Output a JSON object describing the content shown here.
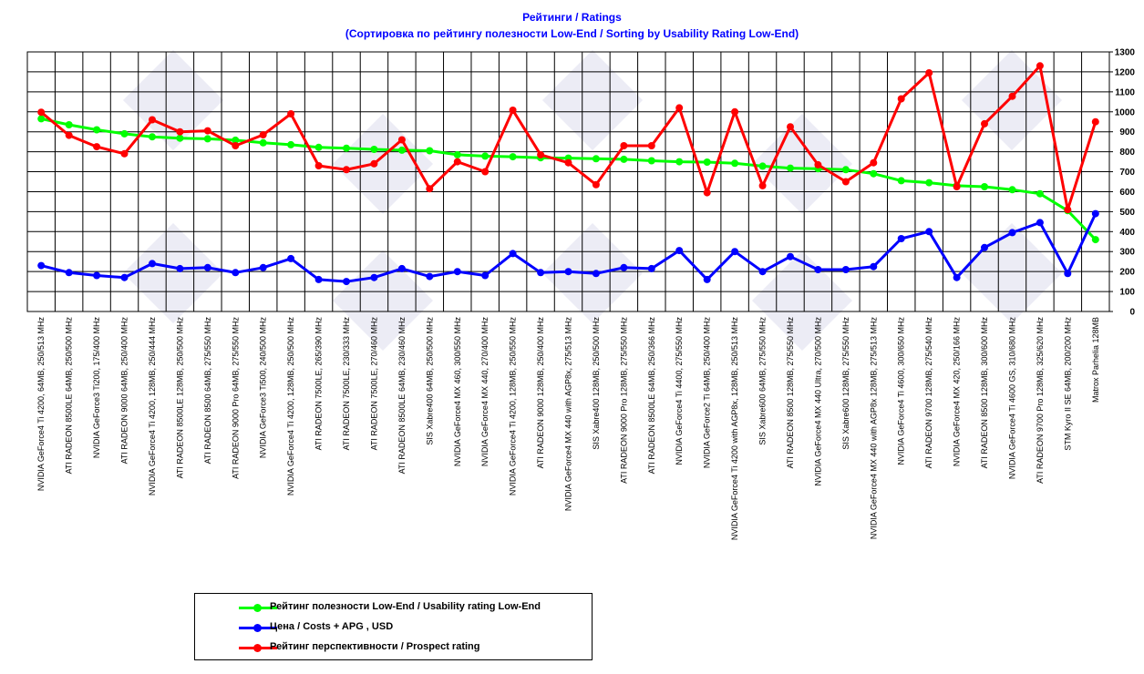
{
  "title": "Рейтинги / Ratings",
  "subtitle": "(Сортировка по рейтингу полезности Low-End / Sorting by Usability Rating Low-End)",
  "chart_data": {
    "type": "line",
    "ylim": [
      0,
      1300
    ],
    "yticks": [
      0,
      100,
      200,
      300,
      400,
      500,
      600,
      700,
      800,
      900,
      1000,
      1100,
      1200,
      1300
    ],
    "grid": true,
    "legend_position": "bottom-center",
    "categories": [
      "NVIDIA GeForce4 Ti 4200, 64MB, 250/513 MHz",
      "ATI RADEON 8500LE 64MB, 250/500 MHz",
      "NVIDIA GeForce3 Ti200, 175/400 MHz",
      "ATI RADEON 9000 64MB, 250/400 MHz",
      "NVIDIA GeForce4 Ti 4200, 128MB, 250/444 MHz",
      "ATI RADEON 8500LE 128MB, 250/500 MHz",
      "ATI RADEON 8500 64MB, 275/550 MHz",
      "ATI RADEON 9000 Pro 64MB, 275/550 MHz",
      "NVIDIA GeForce3 Ti500, 240/500 MHz",
      "NVIDIA GeForce4 Ti 4200, 128MB, 250/500 MHz",
      "ATI RADEON 7500LE, 265/390 MHz",
      "ATI RADEON 7500LE, 230/333 MHz",
      "ATI RADEON 7500LE, 270/460 MHz",
      "ATI RADEON 8500LE 64MB, 230/460 MHz",
      "SIS Xabre400 64MB, 250/500 MHz",
      "NVIDIA GeForce4 MX 460, 300/550 MHz",
      "NVIDIA GeForce4 MX 440, 270/400 MHz",
      "NVIDIA GeForce4 Ti 4200, 128MB, 250/550 MHz",
      "ATI RADEON 9000 128MB, 250/400 MHz",
      "NVIDIA GeForce4 MX 440 with AGP8x, 275/513 MHz",
      "SIS Xabre400 128MB, 250/500 MHz",
      "ATI RADEON 9000 Pro 128MB, 275/550 MHz",
      "ATI RADEON 8500LE 64MB, 250/366 MHz",
      "NVIDIA GeForce4 Ti 4400, 275/550 MHz",
      "NVIDIA GeForce2 Ti 64MB, 250/400 MHz",
      "NVIDIA GeForce4 Ti 4200 with AGP8x, 128MB, 250/513 MHz",
      "SIS Xabre600 64MB, 275/550 MHz",
      "ATI RADEON 8500 128MB, 275/550 MHz",
      "NVIDIA GeForce4 MX 440 Ultra, 270/500 MHz",
      "SIS Xabre600 128MB, 275/550 MHz",
      "NVIDIA GeForce4 MX 440 with AGP8x 128MB, 275/513 MHz",
      "NVIDIA GeForce4 Ti 4600, 300/650 MHz",
      "ATI RADEON 9700 128MB, 275/540 MHz",
      "NVIDIA GeForce4 MX 420, 250/166 MHz",
      "ATI RADEON 8500 128MB, 300/600 MHz",
      "NVIDIA GeForce4 Ti 4600 GS, 310/680 MHz",
      "ATI RADEON 9700 Pro 128MB, 325/620 MHz",
      "STM Kyro II SE 64MB, 200/200 MHz",
      "Matrox Parhelia 128MB"
    ],
    "series": [
      {
        "name": "Рейтинг полезности Low-End / Usability rating Low-End",
        "color": "#00ff00",
        "values": [
          965,
          935,
          910,
          890,
          875,
          868,
          865,
          858,
          845,
          835,
          822,
          818,
          812,
          808,
          805,
          785,
          778,
          775,
          770,
          768,
          765,
          762,
          755,
          750,
          748,
          742,
          728,
          718,
          715,
          710,
          690,
          655,
          645,
          630,
          625,
          610,
          590,
          505,
          360
        ]
      },
      {
        "name": "Цена / Costs + APG , USD",
        "color": "#0000ff",
        "values": [
          230,
          195,
          180,
          170,
          240,
          215,
          220,
          195,
          220,
          265,
          160,
          150,
          170,
          215,
          175,
          200,
          180,
          290,
          195,
          200,
          190,
          220,
          215,
          305,
          160,
          300,
          200,
          275,
          210,
          210,
          225,
          365,
          400,
          170,
          320,
          395,
          445,
          190,
          490
        ]
      },
      {
        "name": "Рейтинг перспективности / Prospect rating",
        "color": "#ff0000",
        "values": [
          998,
          882,
          825,
          790,
          960,
          900,
          905,
          830,
          885,
          990,
          730,
          710,
          740,
          860,
          615,
          750,
          700,
          1008,
          785,
          745,
          635,
          830,
          830,
          1020,
          595,
          1000,
          630,
          925,
          735,
          650,
          745,
          1065,
          1195,
          625,
          940,
          1078,
          1230,
          510,
          950
        ]
      }
    ]
  }
}
